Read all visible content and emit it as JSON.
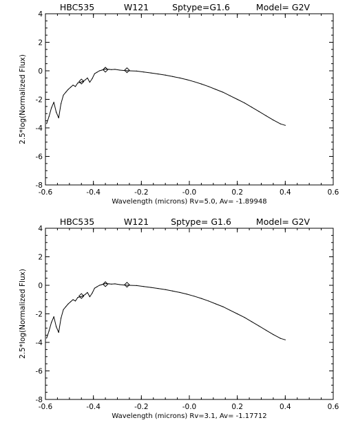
{
  "chart_data": [
    {
      "type": "line",
      "title_parts": [
        "HBC535",
        "W121",
        "Sptype=G1.6",
        "Model= G2V"
      ],
      "xlabel": "Wavelength (microns) Rv=5.0, Av=      -1.89948",
      "ylabel": "2.5*log(Normalized Flux)",
      "xlim": [
        -0.6,
        0.6
      ],
      "ylim": [
        -8,
        4
      ],
      "xticks": [
        "-0.6",
        "-0.4",
        "-0.2",
        "-0.0",
        "0.2",
        "0.4",
        "0.6"
      ],
      "yticks": [
        "-8",
        "-6",
        "-4",
        "-2",
        "0",
        "2",
        "4"
      ],
      "grid": false,
      "series": [
        {
          "x": [
            -0.595,
            -0.585,
            -0.575,
            -0.565,
            -0.555,
            -0.545,
            -0.535,
            -0.525,
            -0.515,
            -0.505,
            -0.495,
            -0.485,
            -0.475,
            -0.465,
            -0.455,
            -0.445,
            -0.435,
            -0.425,
            -0.415,
            -0.405,
            -0.395,
            -0.385,
            -0.375,
            -0.365,
            -0.355,
            -0.345,
            -0.335,
            -0.325,
            -0.31,
            -0.29,
            -0.27,
            -0.25,
            -0.22,
            -0.19,
            -0.16,
            -0.13,
            -0.1,
            -0.07,
            -0.04,
            -0.01,
            0.02,
            0.05,
            0.08,
            0.11,
            0.14,
            0.17,
            0.2,
            0.23,
            0.26,
            0.29,
            0.32,
            0.35,
            0.38,
            0.4
          ],
          "y": [
            -3.7,
            -3.2,
            -2.6,
            -2.2,
            -2.9,
            -3.3,
            -2.3,
            -1.7,
            -1.5,
            -1.3,
            -1.15,
            -1.0,
            -1.1,
            -0.85,
            -0.8,
            -0.75,
            -0.65,
            -0.5,
            -0.8,
            -0.55,
            -0.2,
            -0.1,
            0.0,
            0.05,
            0.1,
            0.12,
            0.1,
            0.08,
            0.1,
            0.05,
            0.02,
            0.0,
            -0.02,
            -0.08,
            -0.15,
            -0.22,
            -0.3,
            -0.4,
            -0.5,
            -0.62,
            -0.76,
            -0.92,
            -1.1,
            -1.3,
            -1.5,
            -1.75,
            -2.0,
            -2.25,
            -2.55,
            -2.85,
            -3.15,
            -3.45,
            -3.72,
            -3.82
          ]
        }
      ],
      "markers": {
        "symbol": "diamond",
        "x": [
          -0.45,
          -0.35,
          -0.26
        ],
        "y": [
          -0.75,
          0.08,
          0.04
        ]
      }
    },
    {
      "type": "line",
      "title_parts": [
        "HBC535",
        "W121",
        "Sptype= G1.6",
        "Model= G2V"
      ],
      "xlabel": "Wavelength (microns) Rv=3.1,  Av=      -1.17712",
      "ylabel": "2.5*log(Normalized Flux)",
      "xlim": [
        -0.6,
        0.6
      ],
      "ylim": [
        -8,
        4
      ],
      "xticks": [
        "-0.6",
        "-0.4",
        "-0.2",
        "-0.0",
        "0.2",
        "0.4",
        "0.6"
      ],
      "yticks": [
        "-8",
        "-6",
        "-4",
        "-2",
        "0",
        "2",
        "4"
      ],
      "grid": false,
      "series": [
        {
          "x": [
            -0.595,
            -0.585,
            -0.575,
            -0.565,
            -0.555,
            -0.545,
            -0.535,
            -0.525,
            -0.515,
            -0.505,
            -0.495,
            -0.485,
            -0.475,
            -0.465,
            -0.455,
            -0.445,
            -0.435,
            -0.425,
            -0.415,
            -0.405,
            -0.395,
            -0.385,
            -0.375,
            -0.365,
            -0.355,
            -0.345,
            -0.335,
            -0.325,
            -0.31,
            -0.29,
            -0.27,
            -0.25,
            -0.22,
            -0.19,
            -0.16,
            -0.13,
            -0.1,
            -0.07,
            -0.04,
            -0.01,
            0.02,
            0.05,
            0.08,
            0.11,
            0.14,
            0.17,
            0.2,
            0.23,
            0.26,
            0.29,
            0.32,
            0.35,
            0.38,
            0.4
          ],
          "y": [
            -3.7,
            -3.2,
            -2.6,
            -2.2,
            -2.9,
            -3.3,
            -2.3,
            -1.7,
            -1.5,
            -1.3,
            -1.15,
            -1.0,
            -1.1,
            -0.85,
            -0.8,
            -0.75,
            -0.65,
            -0.5,
            -0.8,
            -0.55,
            -0.2,
            -0.1,
            0.0,
            0.05,
            0.1,
            0.12,
            0.1,
            0.08,
            0.1,
            0.05,
            0.02,
            0.0,
            -0.02,
            -0.08,
            -0.15,
            -0.22,
            -0.3,
            -0.4,
            -0.5,
            -0.62,
            -0.76,
            -0.92,
            -1.1,
            -1.3,
            -1.5,
            -1.75,
            -2.0,
            -2.25,
            -2.55,
            -2.85,
            -3.15,
            -3.45,
            -3.72,
            -3.82
          ]
        }
      ],
      "markers": {
        "symbol": "diamond",
        "x": [
          -0.45,
          -0.35,
          -0.26
        ],
        "y": [
          -0.75,
          0.08,
          0.04
        ]
      }
    }
  ]
}
